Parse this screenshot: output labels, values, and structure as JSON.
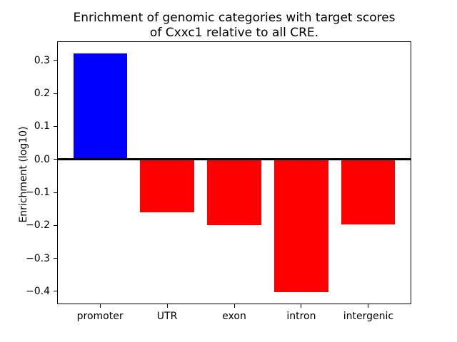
{
  "title_block": {
    "line1": "Enrichment of genomic categories with target scores",
    "line2": "of Cxxc1 relative to all CRE."
  },
  "chart_data": {
    "type": "bar",
    "title": "Enrichment of genomic categories with target scores\nof Cxxc1 relative to all CRE.",
    "title_lines": [
      "Enrichment of genomic categories with target scores",
      "of Cxxc1 relative to all CRE."
    ],
    "categories": [
      "promoter",
      "UTR",
      "exon",
      "intron",
      "intergenic"
    ],
    "values": [
      0.322,
      -0.16,
      -0.2,
      -0.403,
      -0.198
    ],
    "bar_colors": [
      "#0000ff",
      "#ff0000",
      "#ff0000",
      "#ff0000",
      "#ff0000"
    ],
    "xlabel": "",
    "ylabel": "Enrichment (log10)",
    "yticks": [
      0.3,
      0.2,
      0.1,
      0.0,
      -0.1,
      -0.2,
      -0.3,
      -0.4
    ],
    "ytick_labels": [
      "0.3",
      "0.2",
      "0.1",
      "0.0",
      "−0.1",
      "−0.2",
      "−0.3",
      "−0.4"
    ],
    "ylim": [
      -0.439,
      0.358
    ],
    "xlim": [
      -0.64,
      4.64
    ],
    "bar_width": 0.8,
    "zero_line": true,
    "grid": false,
    "legend": false,
    "background_color": "#ffffff",
    "axis_color": "#000000"
  }
}
